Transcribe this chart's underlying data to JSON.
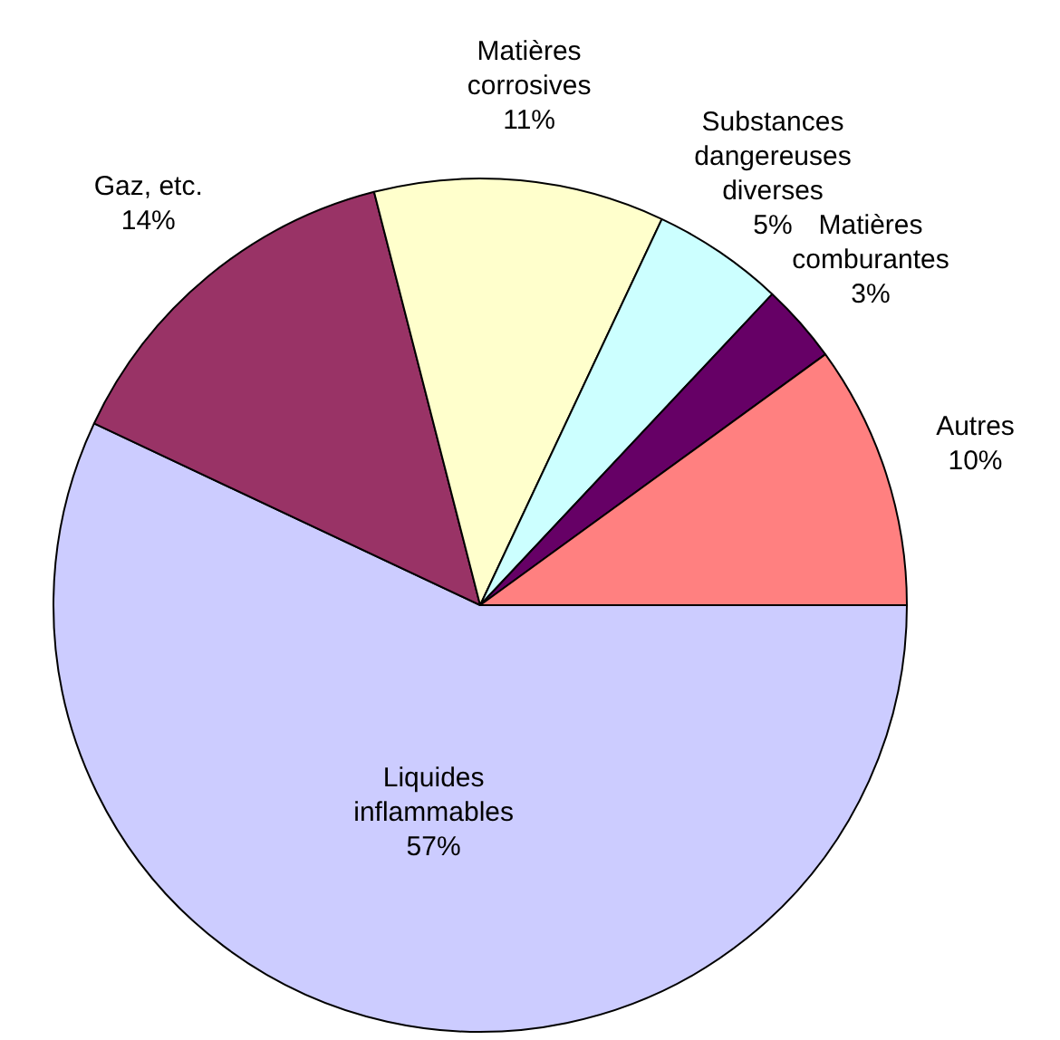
{
  "chart_data": {
    "type": "pie",
    "categories": [
      "Liquides inflammables",
      "Gaz, etc.",
      "Matières corrosives",
      "Substances dangereuses diverses",
      "Matières comburantes",
      "Autres"
    ],
    "values": [
      57,
      14,
      11,
      5,
      3,
      10
    ],
    "colors": [
      "#ccccff",
      "#993366",
      "#ffffcc",
      "#ccffff",
      "#660066",
      "#ff8080"
    ],
    "value_labels": [
      "57%",
      "14%",
      "11%",
      "5%",
      "3%",
      "10%"
    ],
    "legend": false
  }
}
